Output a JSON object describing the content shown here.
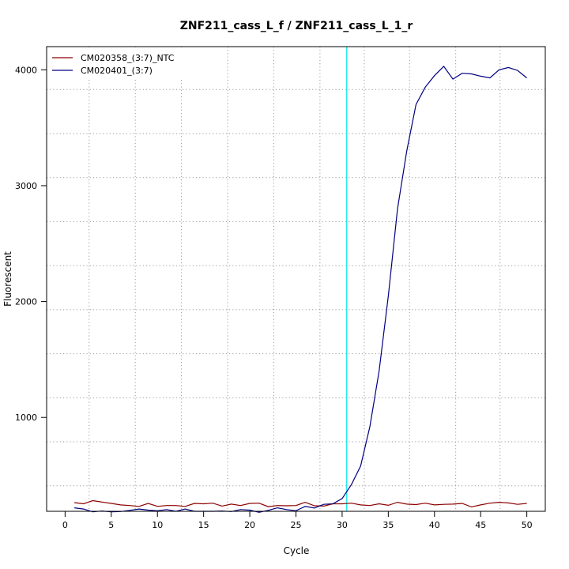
{
  "chart_data": {
    "type": "line",
    "title": "ZNF211_cass_L_f / ZNF211_cass_L_1_r",
    "xlabel": "Cycle",
    "ylabel": "Fluorescent",
    "xlim": [
      -2,
      52
    ],
    "ylim": [
      190,
      4200
    ],
    "x_ticks": [
      0,
      5,
      10,
      15,
      20,
      25,
      30,
      35,
      40,
      45,
      50
    ],
    "y_ticks": [
      1000,
      2000,
      3000,
      4000
    ],
    "x_grid": [
      2.6,
      7.6,
      12.6,
      17.6,
      22.6,
      27.6,
      32.4,
      37.3,
      42.3,
      47.1
    ],
    "y_grid": [
      410,
      790,
      1170,
      1550,
      1930,
      2310,
      2690,
      3070,
      3450,
      3830
    ],
    "grid": true,
    "threshold_cycle": 30.5,
    "threshold_color": "#00e5e5",
    "legend_position": "top-left",
    "x": [
      1,
      2,
      3,
      4,
      5,
      6,
      7,
      8,
      9,
      10,
      11,
      12,
      13,
      14,
      15,
      16,
      17,
      18,
      19,
      20,
      21,
      22,
      23,
      24,
      25,
      26,
      27,
      28,
      29,
      30,
      31,
      32,
      33,
      34,
      35,
      36,
      37,
      38,
      39,
      40,
      41,
      42,
      43,
      44,
      45,
      46,
      47,
      48,
      49,
      50
    ],
    "series": [
      {
        "name": "CM020358_(3:7)_NTC",
        "color": "#8b0000",
        "values": [
          265,
          255,
          282,
          270,
          258,
          245,
          240,
          232,
          258,
          233,
          240,
          240,
          232,
          258,
          255,
          260,
          235,
          252,
          240,
          258,
          260,
          230,
          240,
          238,
          240,
          268,
          238,
          235,
          255,
          255,
          260,
          245,
          240,
          255,
          242,
          268,
          252,
          248,
          260,
          245,
          250,
          252,
          258,
          228,
          245,
          260,
          268,
          262,
          250,
          258
        ]
      },
      {
        "name": "CM020401_(3:7)",
        "color": "#000080",
        "values": [
          220,
          210,
          185,
          193,
          185,
          188,
          198,
          210,
          200,
          195,
          205,
          190,
          210,
          190,
          190,
          190,
          193,
          188,
          205,
          200,
          182,
          198,
          220,
          205,
          195,
          232,
          218,
          250,
          255,
          300,
          420,
          580,
          920,
          1400,
          2050,
          2800,
          3300,
          3700,
          3850,
          3950,
          4030,
          3920,
          3970,
          3965,
          3945,
          3930,
          4000,
          4020,
          3995,
          3930
        ]
      }
    ]
  }
}
